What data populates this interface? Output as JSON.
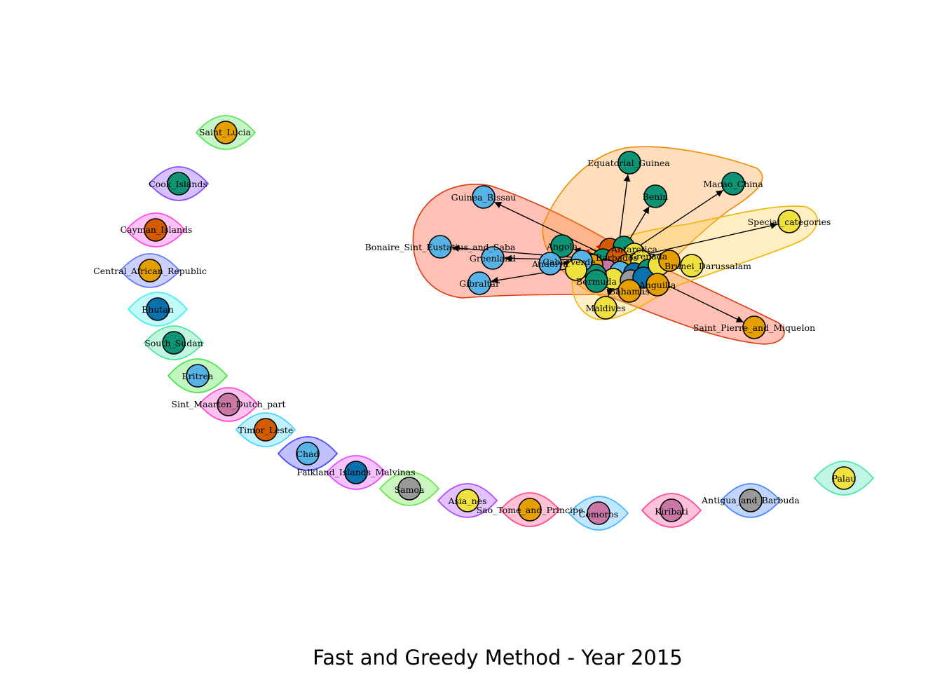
{
  "title": "Fast and Greedy Method - Year 2015",
  "palette": {
    "green": "#0d9474",
    "orange": "#e59f00",
    "rust": "#d35b00",
    "blue": "#57b3e6",
    "yellow": "#efe23f",
    "darkblue": "#0a71ac",
    "pink": "#c978a6",
    "gray": "#999999"
  },
  "isolated_nodes": [
    {
      "label": "Saint_Lucia",
      "color": "orange",
      "hull": "#5ce65c"
    },
    {
      "label": "Cook_Islands",
      "color": "green",
      "hull": "#8a4dff"
    },
    {
      "label": "Cayman_Islands",
      "color": "rust",
      "hull": "#ff4de6"
    },
    {
      "label": "Central_African_Republic",
      "color": "orange",
      "hull": "#6a7aff"
    },
    {
      "label": "Bhutan",
      "color": "darkblue",
      "hull": "#4deeee"
    },
    {
      "label": "South_Sudan",
      "color": "green",
      "hull": "#4de6a0"
    },
    {
      "label": "Eritrea",
      "color": "blue",
      "hull": "#4de64d"
    },
    {
      "label": "Sint_Maarten_Dutch_part",
      "color": "pink",
      "hull": "#ff4dd2"
    },
    {
      "label": "Timor_Leste",
      "color": "rust",
      "hull": "#4dd6ff"
    },
    {
      "label": "Chad",
      "color": "blue",
      "hull": "#4d4dff"
    },
    {
      "label": "Falkland_Islands_Malvinas",
      "color": "darkblue",
      "hull": "#e64dff"
    },
    {
      "label": "Samoa",
      "color": "gray",
      "hull": "#6ae64d"
    },
    {
      "label": "Asia_nes",
      "color": "yellow",
      "hull": "#b04dff"
    },
    {
      "label": "Sao_Tome_and_Principe",
      "color": "orange",
      "hull": "#ff4d8a"
    },
    {
      "label": "Comoros",
      "color": "pink",
      "hull": "#4db8ff"
    },
    {
      "label": "Kiribati",
      "color": "pink",
      "hull": "#ff4d9a"
    },
    {
      "label": "Antigua_and_Barbuda",
      "color": "gray",
      "hull": "#4d8aff"
    },
    {
      "label": "Palau",
      "color": "yellow",
      "hull": "#4de6b8"
    }
  ],
  "cluster_nodes": [
    {
      "label": "Equatorial_Guinea",
      "color": "green"
    },
    {
      "label": "Benin",
      "color": "green"
    },
    {
      "label": "Macao_China",
      "color": "green"
    },
    {
      "label": "Guinea_Bissau",
      "color": "blue"
    },
    {
      "label": "Special_categories",
      "color": "yellow"
    },
    {
      "label": "Bonaire_Sint_Eustatius_and_Saba",
      "color": "blue"
    },
    {
      "label": "Angola",
      "color": "green"
    },
    {
      "label": "Greenland",
      "color": "blue"
    },
    {
      "label": "Andorra",
      "color": "blue"
    },
    {
      "label": "Gibraltar",
      "color": "blue"
    },
    {
      "label": "Bermuda",
      "color": "green"
    },
    {
      "label": "Bahamas",
      "color": "orange"
    },
    {
      "label": "Anguilla",
      "color": "orange"
    },
    {
      "label": "Brunei_Darussalam",
      "color": "yellow"
    },
    {
      "label": "Maldives",
      "color": "yellow"
    },
    {
      "label": "Saint_Pierre_and_Miquelon",
      "color": "orange"
    }
  ],
  "hub_label_fragments": [
    "Antarctica",
    "Barbados",
    "Cabo_Verde",
    "Grenada"
  ]
}
